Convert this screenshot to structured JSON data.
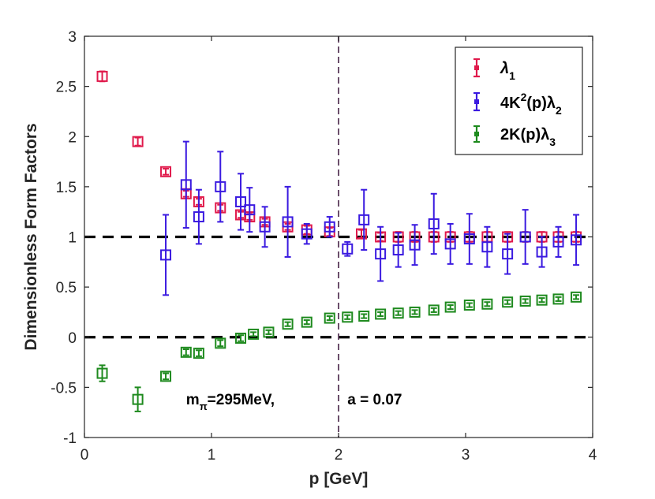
{
  "chart_data": {
    "type": "scatter",
    "title": "",
    "xlabel": "p [GeV]",
    "ylabel": "Dimensionless Form Factors",
    "xlim": [
      0,
      4
    ],
    "ylim": [
      -1,
      3
    ],
    "xticks": [
      0,
      1,
      2,
      3,
      4
    ],
    "yticks": [
      -1,
      -0.5,
      0,
      0.5,
      1,
      1.5,
      2,
      2.5,
      3
    ],
    "xtick_labels": [
      "0",
      "1",
      "2",
      "3",
      "4"
    ],
    "ytick_labels": [
      "-1",
      "-0.5",
      "0",
      "0.5",
      "1",
      "1.5",
      "2",
      "2.5",
      "3"
    ],
    "grid": false,
    "legend_position": "top-right",
    "reference_lines": [
      {
        "orientation": "horizontal",
        "value": 1,
        "style": "dashed",
        "color": "#000000"
      },
      {
        "orientation": "horizontal",
        "value": 0,
        "style": "dashed",
        "color": "#000000"
      },
      {
        "orientation": "vertical",
        "value": 2,
        "style": "dashed",
        "color": "#5a3a5a"
      }
    ],
    "annotations": [
      {
        "text_main": "m",
        "text_sub": "π",
        "text_rest": "=295MeV,",
        "x": 0.8,
        "y": -0.67
      },
      {
        "text": "a = 0.07",
        "x": 2.07,
        "y": -0.67
      }
    ],
    "series": [
      {
        "name": "λ1",
        "legend_main": "λ",
        "legend_sub": "1",
        "legend_sup": "",
        "color": "#e0194b",
        "x": [
          0.14,
          0.42,
          0.64,
          0.8,
          0.9,
          1.07,
          1.23,
          1.3,
          1.42,
          1.6,
          1.75,
          1.93,
          2.18,
          2.33,
          2.47,
          2.6,
          2.75,
          2.88,
          3.03,
          3.17,
          3.33,
          3.47,
          3.6,
          3.73,
          3.87
        ],
        "y": [
          2.6,
          1.95,
          1.65,
          1.43,
          1.35,
          1.29,
          1.22,
          1.2,
          1.15,
          1.1,
          1.07,
          1.05,
          1.03,
          1.0,
          1.0,
          1.0,
          1.0,
          1.0,
          1.0,
          1.0,
          1.0,
          1.0,
          1.0,
          1.0,
          1.0
        ],
        "err": [
          0.05,
          0.04,
          0.03,
          0.03,
          0.03,
          0.03,
          0.03,
          0.03,
          0.03,
          0.03,
          0.04,
          0.04,
          0.04,
          0.04,
          0.05,
          0.05,
          0.05,
          0.05,
          0.05,
          0.05,
          0.05,
          0.05,
          0.05,
          0.05,
          0.05
        ]
      },
      {
        "name": "4K2(p)λ2",
        "legend_main": "4K",
        "legend_sup": "2",
        "legend_mid": "(p)λ",
        "legend_sub": "2",
        "color": "#3a1ae0",
        "x": [
          0.64,
          0.8,
          0.9,
          1.07,
          1.23,
          1.3,
          1.42,
          1.6,
          1.75,
          1.93,
          2.07,
          2.2,
          2.33,
          2.47,
          2.6,
          2.75,
          2.88,
          3.03,
          3.17,
          3.33,
          3.47,
          3.6,
          3.73,
          3.87
        ],
        "y": [
          0.82,
          1.52,
          1.2,
          1.5,
          1.35,
          1.27,
          1.1,
          1.15,
          1.03,
          1.1,
          0.88,
          1.17,
          0.83,
          0.87,
          0.92,
          1.13,
          0.93,
          0.98,
          0.9,
          0.83,
          1.0,
          0.85,
          0.95,
          0.97
        ],
        "err": [
          0.4,
          0.43,
          0.27,
          0.35,
          0.28,
          0.22,
          0.2,
          0.35,
          0.1,
          0.1,
          0.07,
          0.3,
          0.27,
          0.17,
          0.2,
          0.3,
          0.2,
          0.25,
          0.2,
          0.2,
          0.27,
          0.15,
          0.15,
          0.25
        ]
      },
      {
        "name": "2K(p)λ3",
        "legend_main": "2K(p)λ",
        "legend_sub": "3",
        "legend_sup": "",
        "color": "#1e8a1e",
        "x": [
          0.14,
          0.42,
          0.64,
          0.8,
          0.9,
          1.07,
          1.23,
          1.33,
          1.45,
          1.6,
          1.75,
          1.93,
          2.07,
          2.2,
          2.33,
          2.47,
          2.6,
          2.75,
          2.88,
          3.03,
          3.17,
          3.33,
          3.47,
          3.6,
          3.73,
          3.87
        ],
        "y": [
          -0.36,
          -0.62,
          -0.39,
          -0.15,
          -0.16,
          -0.06,
          -0.01,
          0.03,
          0.05,
          0.13,
          0.15,
          0.19,
          0.2,
          0.21,
          0.23,
          0.24,
          0.25,
          0.27,
          0.3,
          0.32,
          0.33,
          0.35,
          0.36,
          0.37,
          0.38,
          0.4
        ],
        "err": [
          0.08,
          0.12,
          0.03,
          0.03,
          0.03,
          0.03,
          0.03,
          0.02,
          0.02,
          0.02,
          0.02,
          0.02,
          0.02,
          0.02,
          0.02,
          0.02,
          0.02,
          0.02,
          0.02,
          0.02,
          0.02,
          0.02,
          0.02,
          0.02,
          0.02,
          0.02
        ]
      }
    ]
  }
}
